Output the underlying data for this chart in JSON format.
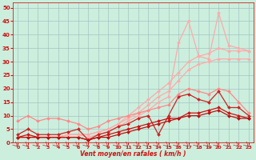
{
  "xlabel": "Vent moyen/en rafales ( km/h )",
  "bg_color": "#cceedd",
  "grid_color": "#99bbbb",
  "x_values": [
    0,
    1,
    2,
    3,
    4,
    5,
    6,
    7,
    8,
    9,
    10,
    11,
    12,
    13,
    14,
    15,
    16,
    17,
    18,
    19,
    20,
    21,
    22,
    23
  ],
  "lines": [
    {
      "y": [
        2,
        2,
        2,
        2,
        2,
        3,
        3,
        3,
        4,
        5,
        7,
        10,
        13,
        16,
        19,
        22,
        26,
        30,
        32,
        33,
        35,
        34,
        34,
        34
      ],
      "color": "#ffaaaa",
      "linewidth": 0.9,
      "marker": "D",
      "markersize": 2.0,
      "zorder": 2
    },
    {
      "y": [
        2,
        2,
        2,
        2,
        2,
        3,
        3,
        3,
        4,
        5,
        7,
        9,
        11,
        14,
        17,
        19,
        23,
        27,
        29,
        30,
        31,
        31,
        31,
        31
      ],
      "color": "#ffaaaa",
      "linewidth": 0.9,
      "marker": "D",
      "markersize": 2.0,
      "zorder": 2
    },
    {
      "y": [
        2,
        2,
        2,
        2,
        2,
        3,
        3,
        2,
        3,
        4,
        6,
        8,
        10,
        12,
        15,
        17,
        37,
        45,
        32,
        31,
        48,
        36,
        35,
        34
      ],
      "color": "#ffaaaa",
      "linewidth": 0.9,
      "marker": "D",
      "markersize": 2.0,
      "zorder": 2
    },
    {
      "y": [
        8,
        10,
        8,
        9,
        9,
        8,
        7,
        5,
        6,
        8,
        9,
        10,
        11,
        12,
        13,
        14,
        18,
        20,
        19,
        18,
        20,
        19,
        15,
        11
      ],
      "color": "#ff8888",
      "linewidth": 0.9,
      "marker": "D",
      "markersize": 2.0,
      "zorder": 3
    },
    {
      "y": [
        3,
        5,
        3,
        3,
        3,
        4,
        5,
        1,
        3,
        4,
        6,
        7,
        9,
        10,
        3,
        10,
        17,
        18,
        16,
        15,
        19,
        13,
        13,
        10
      ],
      "color": "#cc2222",
      "linewidth": 0.9,
      "marker": "D",
      "markersize": 2.0,
      "zorder": 4
    },
    {
      "y": [
        2,
        3,
        2,
        2,
        2,
        2,
        2,
        1,
        2,
        3,
        4,
        5,
        6,
        7,
        8,
        9,
        9,
        11,
        11,
        12,
        13,
        11,
        10,
        9
      ],
      "color": "#cc1111",
      "linewidth": 0.9,
      "marker": "D",
      "markersize": 2.0,
      "zorder": 4
    },
    {
      "y": [
        2,
        2,
        2,
        2,
        2,
        2,
        2,
        1,
        2,
        2,
        3,
        4,
        5,
        6,
        7,
        8,
        9,
        10,
        10,
        11,
        12,
        10,
        9,
        9
      ],
      "color": "#bb1111",
      "linewidth": 0.9,
      "marker": "D",
      "markersize": 2.0,
      "zorder": 4
    }
  ],
  "ylim": [
    0,
    52
  ],
  "xlim": [
    -0.5,
    23.5
  ],
  "yticks": [
    0,
    5,
    10,
    15,
    20,
    25,
    30,
    35,
    40,
    45,
    50
  ],
  "xticks": [
    0,
    1,
    2,
    3,
    4,
    5,
    6,
    7,
    8,
    9,
    10,
    11,
    12,
    13,
    14,
    15,
    16,
    17,
    18,
    19,
    20,
    21,
    22,
    23
  ],
  "figsize": [
    3.2,
    2.0
  ],
  "dpi": 100
}
